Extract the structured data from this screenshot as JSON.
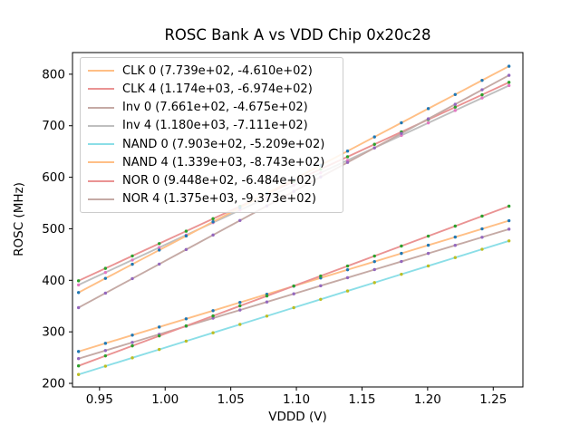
{
  "figure": {
    "title": "ROSC Bank A vs VDD Chip 0x20c28",
    "xlabel": "VDDD (V)",
    "ylabel": "ROSC (MHz)",
    "background_color": "#ffffff",
    "text_color": "#000000",
    "spine_color": "#000000",
    "legend_border_color": "#cccccc"
  },
  "chart_data": {
    "type": "line",
    "title": "ROSC Bank A vs VDD Chip 0x20c28",
    "xlabel": "VDDD (V)",
    "ylabel": "ROSC (MHz)",
    "xlim": [
      0.9294,
      1.2726
    ],
    "ylim": [
      193,
      842
    ],
    "xticks": [
      0.95,
      1.0,
      1.05,
      1.1,
      1.15,
      1.2,
      1.25
    ],
    "xtick_labels": [
      "0.95",
      "1.00",
      "1.05",
      "1.10",
      "1.15",
      "1.20",
      "1.25"
    ],
    "yticks": [
      200,
      300,
      400,
      500,
      600,
      700,
      800
    ],
    "ytick_labels": [
      "200",
      "300",
      "400",
      "500",
      "600",
      "700",
      "800"
    ],
    "grid": false,
    "legend_position": "upper left",
    "fit_note": "legend shows linear fit (slope, intercept): ROSC = slope * VDDD + intercept",
    "x": [
      0.934,
      0.9545,
      0.975,
      0.9955,
      1.016,
      1.0365,
      1.057,
      1.0775,
      1.098,
      1.1185,
      1.139,
      1.1595,
      1.18,
      1.2005,
      1.221,
      1.2415,
      1.262
    ],
    "series": [
      {
        "name": "CLK 0",
        "legend_label": "CLK 0 (7.739e+02, -4.610e+02)",
        "fit_slope": 773.9,
        "fit_intercept": -461.0,
        "line_color": "#ffbf86",
        "marker_color": "#1f77b4",
        "values": [
          261.8,
          277.7,
          293.6,
          309.4,
          325.3,
          341.1,
          357.0,
          372.9,
          388.7,
          404.6,
          420.5,
          436.3,
          452.2,
          468.1,
          483.9,
          499.8,
          515.7
        ]
      },
      {
        "name": "CLK 4",
        "legend_label": "CLK 4 (1.174e+03, -6.974e+02)",
        "fit_slope": 1174.0,
        "fit_intercept": -697.4,
        "line_color": "#ea9393",
        "marker_color": "#2ca02c",
        "values": [
          399.1,
          423.2,
          447.3,
          471.3,
          495.4,
          519.5,
          543.5,
          567.6,
          591.7,
          615.7,
          639.8,
          663.9,
          687.9,
          712.0,
          736.1,
          760.1,
          784.2
        ]
      },
      {
        "name": "Inv 0",
        "legend_label": "Inv 0 (7.661e+02, -4.675e+02)",
        "fit_slope": 766.1,
        "fit_intercept": -467.5,
        "line_color": "#c5aaa5",
        "marker_color": "#9467bd",
        "values": [
          248.0,
          263.7,
          279.4,
          295.2,
          310.9,
          326.6,
          342.3,
          358.0,
          373.7,
          389.4,
          405.1,
          420.8,
          436.5,
          452.2,
          467.9,
          483.6,
          499.3
        ]
      },
      {
        "name": "Inv 4",
        "legend_label": "Inv 4 (1.180e+03, -7.111e+02)",
        "fit_slope": 1180.0,
        "fit_intercept": -711.1,
        "line_color": "#bfbfbf",
        "marker_color": "#e377c2",
        "values": [
          391.0,
          415.2,
          439.4,
          463.6,
          487.8,
          512.0,
          536.2,
          560.4,
          584.5,
          608.7,
          632.9,
          657.1,
          681.3,
          705.5,
          729.7,
          753.9,
          778.1
        ]
      },
      {
        "name": "NAND 0",
        "legend_label": "NAND 0 (7.903e+02, -5.209e+02)",
        "fit_slope": 790.3,
        "fit_intercept": -520.9,
        "line_color": "#8bdee7",
        "marker_color": "#bcbd22",
        "values": [
          217.2,
          233.4,
          249.6,
          265.8,
          282.0,
          298.2,
          314.4,
          330.6,
          346.9,
          363.1,
          379.3,
          395.5,
          411.7,
          427.9,
          444.1,
          460.3,
          476.5
        ]
      },
      {
        "name": "NAND 4",
        "legend_label": "NAND 4 (1.339e+03, -8.743e+02)",
        "fit_slope": 1339.0,
        "fit_intercept": -874.3,
        "line_color": "#ffbf86",
        "marker_color": "#1f77b4",
        "values": [
          376.3,
          403.8,
          431.2,
          458.7,
          486.1,
          513.6,
          541.0,
          568.5,
          595.9,
          623.4,
          650.8,
          678.3,
          705.7,
          733.2,
          760.6,
          788.1,
          815.5
        ]
      },
      {
        "name": "NOR 0",
        "legend_label": "NOR 0 (9.448e+02, -6.484e+02)",
        "fit_slope": 944.8,
        "fit_intercept": -648.4,
        "line_color": "#ea9393",
        "marker_color": "#2ca02c",
        "values": [
          234.0,
          253.4,
          272.8,
          292.1,
          311.5,
          330.9,
          350.3,
          369.6,
          389.0,
          408.4,
          427.7,
          447.1,
          466.5,
          485.8,
          505.2,
          524.6,
          543.9
        ]
      },
      {
        "name": "NOR 4",
        "legend_label": "NOR 4 (1.375e+03, -9.373e+02)",
        "fit_slope": 1375.0,
        "fit_intercept": -937.3,
        "line_color": "#c5aaa5",
        "marker_color": "#9467bd",
        "values": [
          347.0,
          375.1,
          403.3,
          431.5,
          459.7,
          487.9,
          516.1,
          544.3,
          572.5,
          600.6,
          628.8,
          657.0,
          685.2,
          713.4,
          741.6,
          769.8,
          797.9
        ]
      }
    ]
  }
}
